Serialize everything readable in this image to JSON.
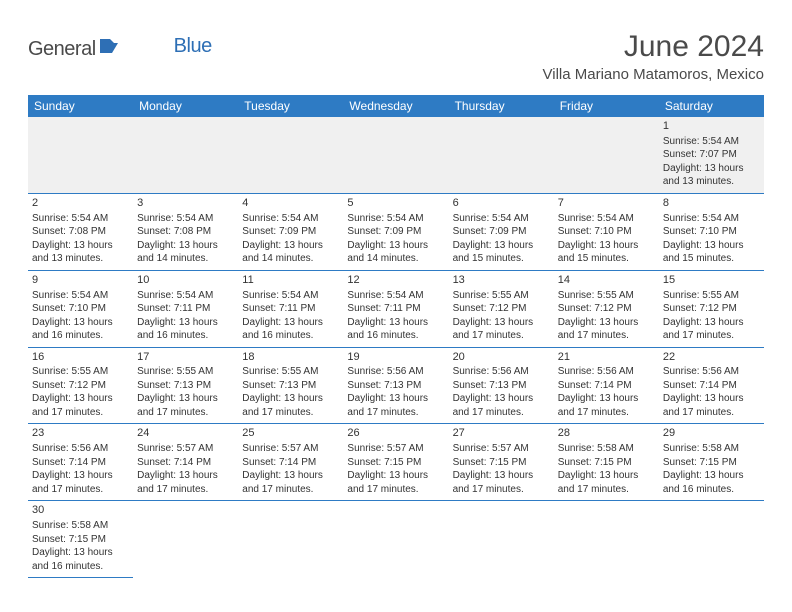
{
  "logo": {
    "general": "General",
    "blue": "Blue"
  },
  "title": "June 2024",
  "location": "Villa Mariano Matamoros, Mexico",
  "colors": {
    "header_bg": "#2e7bc4",
    "header_fg": "#ffffff",
    "rule": "#2e7bc4",
    "first_row_bg": "#f0f0f0",
    "text": "#333333",
    "logo_gray": "#4a4a4a",
    "logo_blue": "#2e6fb5"
  },
  "day_headers": [
    "Sunday",
    "Monday",
    "Tuesday",
    "Wednesday",
    "Thursday",
    "Friday",
    "Saturday"
  ],
  "weeks": [
    [
      null,
      null,
      null,
      null,
      null,
      null,
      {
        "n": "1",
        "sunrise": "Sunrise: 5:54 AM",
        "sunset": "Sunset: 7:07 PM",
        "daylight": "Daylight: 13 hours and 13 minutes."
      }
    ],
    [
      {
        "n": "2",
        "sunrise": "Sunrise: 5:54 AM",
        "sunset": "Sunset: 7:08 PM",
        "daylight": "Daylight: 13 hours and 13 minutes."
      },
      {
        "n": "3",
        "sunrise": "Sunrise: 5:54 AM",
        "sunset": "Sunset: 7:08 PM",
        "daylight": "Daylight: 13 hours and 14 minutes."
      },
      {
        "n": "4",
        "sunrise": "Sunrise: 5:54 AM",
        "sunset": "Sunset: 7:09 PM",
        "daylight": "Daylight: 13 hours and 14 minutes."
      },
      {
        "n": "5",
        "sunrise": "Sunrise: 5:54 AM",
        "sunset": "Sunset: 7:09 PM",
        "daylight": "Daylight: 13 hours and 14 minutes."
      },
      {
        "n": "6",
        "sunrise": "Sunrise: 5:54 AM",
        "sunset": "Sunset: 7:09 PM",
        "daylight": "Daylight: 13 hours and 15 minutes."
      },
      {
        "n": "7",
        "sunrise": "Sunrise: 5:54 AM",
        "sunset": "Sunset: 7:10 PM",
        "daylight": "Daylight: 13 hours and 15 minutes."
      },
      {
        "n": "8",
        "sunrise": "Sunrise: 5:54 AM",
        "sunset": "Sunset: 7:10 PM",
        "daylight": "Daylight: 13 hours and 15 minutes."
      }
    ],
    [
      {
        "n": "9",
        "sunrise": "Sunrise: 5:54 AM",
        "sunset": "Sunset: 7:10 PM",
        "daylight": "Daylight: 13 hours and 16 minutes."
      },
      {
        "n": "10",
        "sunrise": "Sunrise: 5:54 AM",
        "sunset": "Sunset: 7:11 PM",
        "daylight": "Daylight: 13 hours and 16 minutes."
      },
      {
        "n": "11",
        "sunrise": "Sunrise: 5:54 AM",
        "sunset": "Sunset: 7:11 PM",
        "daylight": "Daylight: 13 hours and 16 minutes."
      },
      {
        "n": "12",
        "sunrise": "Sunrise: 5:54 AM",
        "sunset": "Sunset: 7:11 PM",
        "daylight": "Daylight: 13 hours and 16 minutes."
      },
      {
        "n": "13",
        "sunrise": "Sunrise: 5:55 AM",
        "sunset": "Sunset: 7:12 PM",
        "daylight": "Daylight: 13 hours and 17 minutes."
      },
      {
        "n": "14",
        "sunrise": "Sunrise: 5:55 AM",
        "sunset": "Sunset: 7:12 PM",
        "daylight": "Daylight: 13 hours and 17 minutes."
      },
      {
        "n": "15",
        "sunrise": "Sunrise: 5:55 AM",
        "sunset": "Sunset: 7:12 PM",
        "daylight": "Daylight: 13 hours and 17 minutes."
      }
    ],
    [
      {
        "n": "16",
        "sunrise": "Sunrise: 5:55 AM",
        "sunset": "Sunset: 7:12 PM",
        "daylight": "Daylight: 13 hours and 17 minutes."
      },
      {
        "n": "17",
        "sunrise": "Sunrise: 5:55 AM",
        "sunset": "Sunset: 7:13 PM",
        "daylight": "Daylight: 13 hours and 17 minutes."
      },
      {
        "n": "18",
        "sunrise": "Sunrise: 5:55 AM",
        "sunset": "Sunset: 7:13 PM",
        "daylight": "Daylight: 13 hours and 17 minutes."
      },
      {
        "n": "19",
        "sunrise": "Sunrise: 5:56 AM",
        "sunset": "Sunset: 7:13 PM",
        "daylight": "Daylight: 13 hours and 17 minutes."
      },
      {
        "n": "20",
        "sunrise": "Sunrise: 5:56 AM",
        "sunset": "Sunset: 7:13 PM",
        "daylight": "Daylight: 13 hours and 17 minutes."
      },
      {
        "n": "21",
        "sunrise": "Sunrise: 5:56 AM",
        "sunset": "Sunset: 7:14 PM",
        "daylight": "Daylight: 13 hours and 17 minutes."
      },
      {
        "n": "22",
        "sunrise": "Sunrise: 5:56 AM",
        "sunset": "Sunset: 7:14 PM",
        "daylight": "Daylight: 13 hours and 17 minutes."
      }
    ],
    [
      {
        "n": "23",
        "sunrise": "Sunrise: 5:56 AM",
        "sunset": "Sunset: 7:14 PM",
        "daylight": "Daylight: 13 hours and 17 minutes."
      },
      {
        "n": "24",
        "sunrise": "Sunrise: 5:57 AM",
        "sunset": "Sunset: 7:14 PM",
        "daylight": "Daylight: 13 hours and 17 minutes."
      },
      {
        "n": "25",
        "sunrise": "Sunrise: 5:57 AM",
        "sunset": "Sunset: 7:14 PM",
        "daylight": "Daylight: 13 hours and 17 minutes."
      },
      {
        "n": "26",
        "sunrise": "Sunrise: 5:57 AM",
        "sunset": "Sunset: 7:15 PM",
        "daylight": "Daylight: 13 hours and 17 minutes."
      },
      {
        "n": "27",
        "sunrise": "Sunrise: 5:57 AM",
        "sunset": "Sunset: 7:15 PM",
        "daylight": "Daylight: 13 hours and 17 minutes."
      },
      {
        "n": "28",
        "sunrise": "Sunrise: 5:58 AM",
        "sunset": "Sunset: 7:15 PM",
        "daylight": "Daylight: 13 hours and 17 minutes."
      },
      {
        "n": "29",
        "sunrise": "Sunrise: 5:58 AM",
        "sunset": "Sunset: 7:15 PM",
        "daylight": "Daylight: 13 hours and 16 minutes."
      }
    ],
    [
      {
        "n": "30",
        "sunrise": "Sunrise: 5:58 AM",
        "sunset": "Sunset: 7:15 PM",
        "daylight": "Daylight: 13 hours and 16 minutes."
      },
      null,
      null,
      null,
      null,
      null,
      null
    ]
  ]
}
